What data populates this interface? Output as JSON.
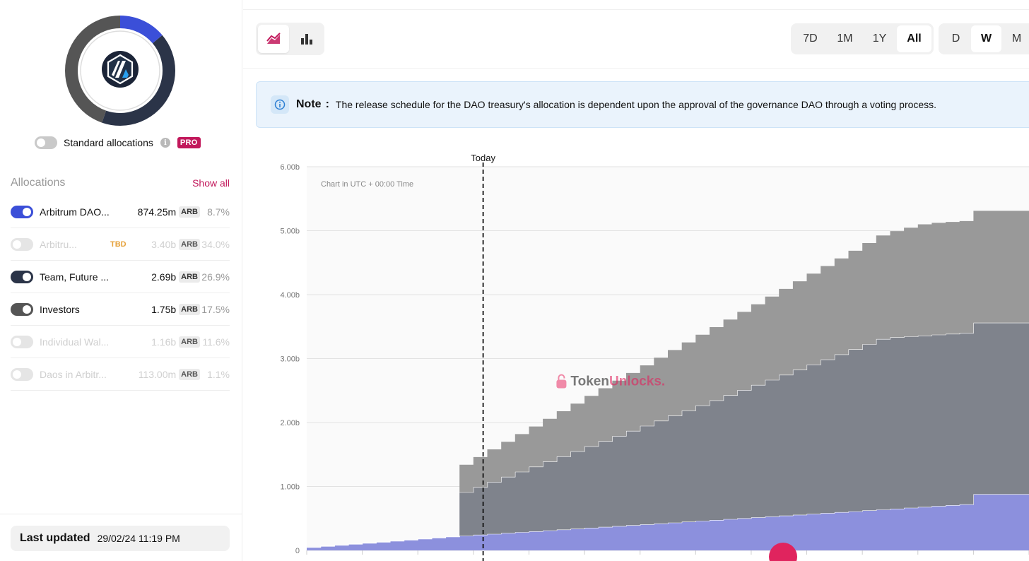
{
  "donut": {
    "token_icon": "arbitrum-logo-icon",
    "colors": [
      "#3b4fd8",
      "#2b3448",
      "#555555"
    ]
  },
  "standard_allocations": {
    "label": "Standard allocations",
    "badge": "PRO",
    "info_icon": "i"
  },
  "allocations": {
    "title": "Allocations",
    "show_all": "Show all",
    "items": [
      {
        "name": "Arbitrum DAO...",
        "tbd": "",
        "amount": "874.25m",
        "unit": "ARB",
        "pct": "8.7%",
        "enabled": true,
        "color": "#3b4fd8"
      },
      {
        "name": "Arbitru...",
        "tbd": "TBD",
        "amount": "3.40b",
        "unit": "ARB",
        "pct": "34.0%",
        "enabled": false,
        "color": "#e5e5e5"
      },
      {
        "name": "Team, Future ...",
        "tbd": "",
        "amount": "2.69b",
        "unit": "ARB",
        "pct": "26.9%",
        "enabled": true,
        "color": "#2b3448"
      },
      {
        "name": "Investors",
        "tbd": "",
        "amount": "1.75b",
        "unit": "ARB",
        "pct": "17.5%",
        "enabled": true,
        "color": "#555555"
      },
      {
        "name": "Individual Wal...",
        "tbd": "",
        "amount": "1.16b",
        "unit": "ARB",
        "pct": "11.6%",
        "enabled": false,
        "color": "#e5e5e5"
      },
      {
        "name": "Daos in Arbitr...",
        "tbd": "",
        "amount": "113.00m",
        "unit": "ARB",
        "pct": "1.1%",
        "enabled": false,
        "color": "#e5e5e5"
      }
    ]
  },
  "last_updated": {
    "label": "Last updated",
    "value": "29/02/24 11:19 PM"
  },
  "toolbar": {
    "chart_types": [
      {
        "icon": "area-chart-icon",
        "active": true
      },
      {
        "icon": "bar-chart-icon",
        "active": false
      }
    ],
    "ranges": [
      {
        "label": "7D",
        "active": false
      },
      {
        "label": "1M",
        "active": false
      },
      {
        "label": "1Y",
        "active": false
      },
      {
        "label": "All",
        "active": true
      }
    ],
    "granularity": [
      {
        "label": "D",
        "active": false
      },
      {
        "label": "W",
        "active": true
      },
      {
        "label": "M",
        "active": false
      }
    ]
  },
  "note": {
    "title": "Note",
    "colon": ":",
    "text": "The release schedule for the DAO treasury's allocation is dependent upon the approval of the governance DAO through a voting process."
  },
  "chart_data": {
    "type": "area",
    "stacked": true,
    "step": true,
    "chart_note": "Chart in UTC + 00:00 Time",
    "today_label": "Today",
    "today_x": 12.7,
    "watermark": {
      "part1": "Token",
      "part2": "Unlocks."
    },
    "ylim": [
      0,
      6
    ],
    "ytick_values": [
      0,
      1,
      2,
      3,
      4,
      5,
      6
    ],
    "ytick_labels": [
      "0",
      "1.00b",
      "2.00b",
      "3.00b",
      "4.00b",
      "5.00b",
      "6.00b"
    ],
    "xlim": [
      0,
      52
    ],
    "x_unit": "week",
    "grid": true,
    "series": [
      {
        "color": "#8c90dd",
        "stroke": "#ffffff",
        "x_start": 0,
        "x_end": 52,
        "start": 0.05,
        "jump_x": 0,
        "jump": 0,
        "slope": 0.0163,
        "x_kink": 11.5,
        "slope2": 0.0136,
        "cap_x": 48,
        "cap": 0.88
      },
      {
        "color": "#7f838c",
        "stroke": "#ffffff",
        "x_start": 11,
        "x_end": 52,
        "start": 0,
        "jump_x": 11,
        "jump": 0.68,
        "slope": 0.0662,
        "x_kink": 11,
        "slope2": 0.0662,
        "cap_x": 48,
        "cap": 2.68
      },
      {
        "color": "#999999",
        "stroke": "none",
        "x_start": 11,
        "x_end": 52,
        "start": 0,
        "jump_x": 11,
        "jump": 0.43,
        "slope": 0.0397,
        "x_kink": 11,
        "slope2": 0.0397,
        "cap_x": 48,
        "cap": 1.75
      }
    ]
  }
}
